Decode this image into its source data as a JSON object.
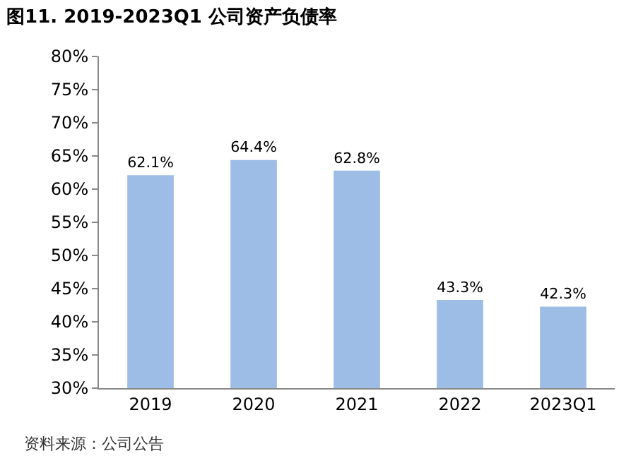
{
  "chart_data": {
    "type": "bar",
    "title": "图11. 2019-2023Q1 公司资产负债率",
    "categories": [
      "2019",
      "2020",
      "2021",
      "2022",
      "2023Q1"
    ],
    "values": [
      62.1,
      64.4,
      62.8,
      43.3,
      42.3
    ],
    "value_labels": [
      "62.1%",
      "64.4%",
      "62.8%",
      "43.3%",
      "42.3%"
    ],
    "color": "#9dbde6",
    "ylim": [
      30,
      80
    ],
    "yticks": [
      {
        "value": 30,
        "label": "30%"
      },
      {
        "value": 35,
        "label": "35%"
      },
      {
        "value": 40,
        "label": "40%"
      },
      {
        "value": 45,
        "label": "45%"
      },
      {
        "value": 50,
        "label": "50%"
      },
      {
        "value": 55,
        "label": "55%"
      },
      {
        "value": 60,
        "label": "60%"
      },
      {
        "value": 65,
        "label": "65%"
      },
      {
        "value": 70,
        "label": "70%"
      },
      {
        "value": 75,
        "label": "75%"
      },
      {
        "value": 80,
        "label": "80%"
      }
    ],
    "grid": false,
    "annotations": [
      "资料来源：公司公告"
    ]
  }
}
